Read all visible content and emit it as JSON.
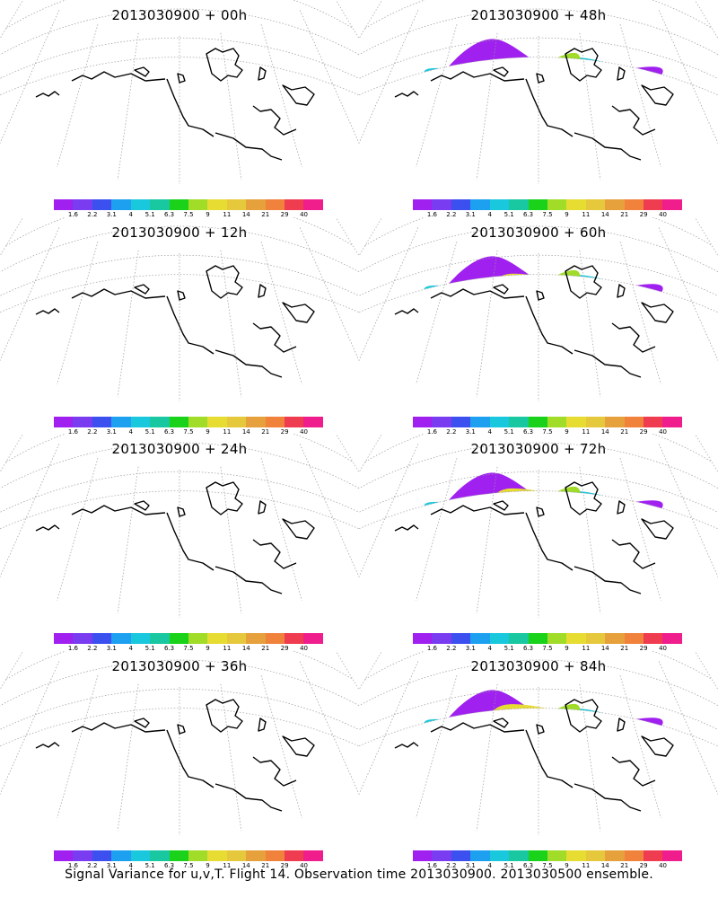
{
  "panels": [
    {
      "title": "2013030900 + 00h",
      "level": 0
    },
    {
      "title": "2013030900 + 48h",
      "level": 4
    },
    {
      "title": "2013030900 + 12h",
      "level": 1
    },
    {
      "title": "2013030900 + 60h",
      "level": 5
    },
    {
      "title": "2013030900 + 24h",
      "level": 2
    },
    {
      "title": "2013030900 + 72h",
      "level": 6
    },
    {
      "title": "2013030900 + 36h",
      "level": 3
    },
    {
      "title": "2013030900 + 84h",
      "level": 7
    }
  ],
  "colorbar": {
    "colors": [
      "#a020f0",
      "#7a3cf0",
      "#3c50f0",
      "#1ea0f0",
      "#19c8dc",
      "#19c8a0",
      "#19d219",
      "#a0dc28",
      "#e6dc32",
      "#e6c83c",
      "#e6a03c",
      "#f0823c",
      "#f03c50",
      "#f01e8c"
    ],
    "labels": [
      "1.6",
      "2.2",
      "3.1",
      "4",
      "5.1",
      "6.3",
      "7.5",
      "9",
      "11",
      "14",
      "21",
      "29",
      "40"
    ]
  },
  "footer": "Signal Variance for u,v,T. Flight 14. Observation time 2013030900. 2013030500 ensemble."
}
